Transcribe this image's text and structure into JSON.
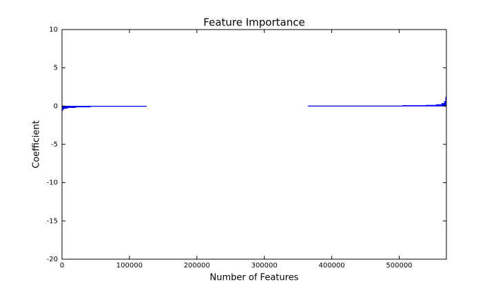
{
  "chart_data": {
    "type": "histogram",
    "title": "Feature Importance",
    "xlabel": "Number of Features",
    "ylabel": "Coefficient",
    "bins": [
      0,
      1000,
      3000,
      8000,
      20000,
      42000,
      125000,
      365000,
      505000,
      540000,
      555000,
      563000,
      567000,
      569000,
      570000
    ],
    "values": [
      -0.6,
      -0.4,
      -0.3,
      -0.2,
      -0.12,
      -0.03,
      null,
      0.03,
      0.08,
      0.12,
      0.2,
      0.35,
      0.6,
      1.2
    ],
    "color": "#0000ff",
    "xlim": [
      0,
      570000
    ],
    "xticks": [
      0,
      100000,
      200000,
      300000,
      400000,
      500000
    ],
    "ylim": [
      -20,
      10
    ],
    "yticks": [
      -20,
      -15,
      -10,
      -5,
      0,
      5,
      10
    ],
    "grid": false
  }
}
